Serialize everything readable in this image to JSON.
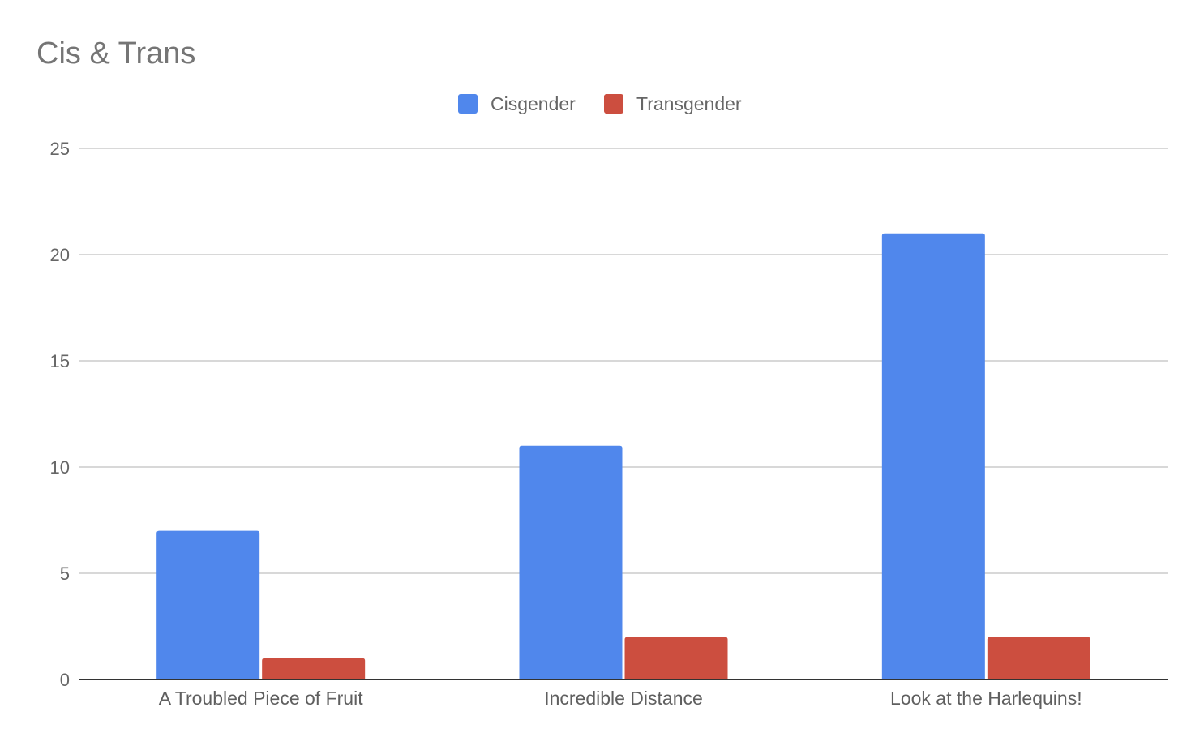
{
  "chart_data": {
    "type": "bar",
    "title": "Cis & Trans",
    "xlabel": "",
    "ylabel": "",
    "categories": [
      "A Troubled Piece of Fruit",
      "Incredible Distance",
      "Look at the Harlequins!"
    ],
    "series": [
      {
        "name": "Cisgender",
        "values": [
          7,
          11,
          21
        ],
        "color": "#5087EC"
      },
      {
        "name": "Transgender",
        "values": [
          1,
          2,
          2
        ],
        "color": "#CC4E3F"
      }
    ],
    "ylim": [
      0,
      25
    ],
    "yticks": [
      0,
      5,
      10,
      15,
      20,
      25
    ],
    "grid": true,
    "legend_position": "top-center"
  }
}
